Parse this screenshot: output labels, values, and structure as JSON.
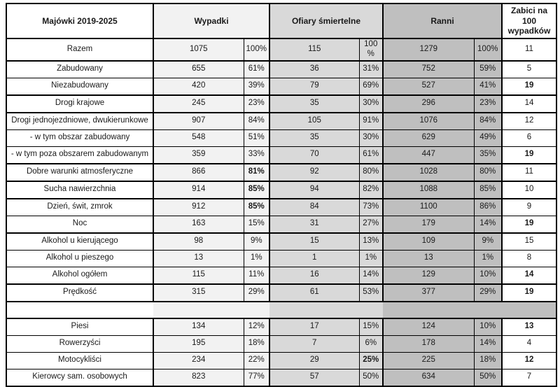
{
  "colors": {
    "wypadki_bg": "#f2f2f2",
    "ofiary_bg": "#d9d9d9",
    "ranni_bg": "#bfbfbf",
    "border": "#000000",
    "text": "#1a1a1a"
  },
  "chart_data": {
    "type": "table",
    "title": "Majówki 2019-2025",
    "header": {
      "label": "Majówki 2019-2025",
      "wypadki": "Wypadki",
      "ofiary": "Ofiary śmiertelne",
      "ranni": "Ranni",
      "zabici": "Zabici na 100 wypadków"
    },
    "columns": [
      "label",
      "wypadki_n",
      "wypadki_p",
      "ofiary_n",
      "ofiary_p",
      "ranni_n",
      "ranni_p",
      "zabici"
    ],
    "rows": [
      {
        "label": "Razem",
        "wypadki_n": "1075",
        "wypadki_p": "100%",
        "ofiary_n": "115",
        "ofiary_p": "100 %",
        "ranni_n": "1279",
        "ranni_p": "100%",
        "zabici": "11",
        "sep": true,
        "bold": []
      },
      {
        "label": "Zabudowany",
        "wypadki_n": "655",
        "wypadki_p": "61%",
        "ofiary_n": "36",
        "ofiary_p": "31%",
        "ranni_n": "752",
        "ranni_p": "59%",
        "zabici": "5",
        "sep": true,
        "bold": []
      },
      {
        "label": "Niezabudowany",
        "wypadki_n": "420",
        "wypadki_p": "39%",
        "ofiary_n": "79",
        "ofiary_p": "69%",
        "ranni_n": "527",
        "ranni_p": "41%",
        "zabici": "19",
        "sep": false,
        "bold": [
          "zabici"
        ]
      },
      {
        "label": "Drogi krajowe",
        "wypadki_n": "245",
        "wypadki_p": "23%",
        "ofiary_n": "35",
        "ofiary_p": "30%",
        "ranni_n": "296",
        "ranni_p": "23%",
        "zabici": "14",
        "sep": true,
        "bold": []
      },
      {
        "label": "Drogi jednojezdniowe, dwukierunkowe",
        "wypadki_n": "907",
        "wypadki_p": "84%",
        "ofiary_n": "105",
        "ofiary_p": "91%",
        "ranni_n": "1076",
        "ranni_p": "84%",
        "zabici": "12",
        "sep": true,
        "bold": []
      },
      {
        "label": "- w tym obszar zabudowany",
        "wypadki_n": "548",
        "wypadki_p": "51%",
        "ofiary_n": "35",
        "ofiary_p": "30%",
        "ranni_n": "629",
        "ranni_p": "49%",
        "zabici": "6",
        "sep": false,
        "bold": []
      },
      {
        "label": "- w tym poza obszarem zabudowanym",
        "wypadki_n": "359",
        "wypadki_p": "33%",
        "ofiary_n": "70",
        "ofiary_p": "61%",
        "ranni_n": "447",
        "ranni_p": "35%",
        "zabici": "19",
        "sep": false,
        "bold": [
          "zabici"
        ]
      },
      {
        "label": "Dobre warunki atmosferyczne",
        "wypadki_n": "866",
        "wypadki_p": "81%",
        "ofiary_n": "92",
        "ofiary_p": "80%",
        "ranni_n": "1028",
        "ranni_p": "80%",
        "zabici": "11",
        "sep": true,
        "bold": [
          "wypadki_p"
        ]
      },
      {
        "label": "Sucha nawierzchnia",
        "wypadki_n": "914",
        "wypadki_p": "85%",
        "ofiary_n": "94",
        "ofiary_p": "82%",
        "ranni_n": "1088",
        "ranni_p": "85%",
        "zabici": "10",
        "sep": true,
        "bold": [
          "wypadki_p"
        ]
      },
      {
        "label": "Dzień, świt, zmrok",
        "wypadki_n": "912",
        "wypadki_p": "85%",
        "ofiary_n": "84",
        "ofiary_p": "73%",
        "ranni_n": "1100",
        "ranni_p": "86%",
        "zabici": "9",
        "sep": true,
        "bold": [
          "wypadki_p"
        ]
      },
      {
        "label": "Noc",
        "wypadki_n": "163",
        "wypadki_p": "15%",
        "ofiary_n": "31",
        "ofiary_p": "27%",
        "ranni_n": "179",
        "ranni_p": "14%",
        "zabici": "19",
        "sep": false,
        "bold": [
          "zabici"
        ]
      },
      {
        "label": "Alkohol u kierującego",
        "wypadki_n": "98",
        "wypadki_p": "9%",
        "ofiary_n": "15",
        "ofiary_p": "13%",
        "ranni_n": "109",
        "ranni_p": "9%",
        "zabici": "15",
        "sep": true,
        "bold": []
      },
      {
        "label": "Alkohol u pieszego",
        "wypadki_n": "13",
        "wypadki_p": "1%",
        "ofiary_n": "1",
        "ofiary_p": "1%",
        "ranni_n": "13",
        "ranni_p": "1%",
        "zabici": "8",
        "sep": false,
        "bold": []
      },
      {
        "label": "Alkohol ogółem",
        "wypadki_n": "115",
        "wypadki_p": "11%",
        "ofiary_n": "16",
        "ofiary_p": "14%",
        "ranni_n": "129",
        "ranni_p": "10%",
        "zabici": "14",
        "sep": false,
        "bold": [
          "zabici"
        ]
      },
      {
        "label": "Prędkość",
        "wypadki_n": "315",
        "wypadki_p": "29%",
        "ofiary_n": "61",
        "ofiary_p": "53%",
        "ranni_n": "377",
        "ranni_p": "29%",
        "zabici": "19",
        "sep": true,
        "bold": [
          "zabici"
        ]
      },
      {
        "empty": true,
        "sep": true
      },
      {
        "label": "Piesi",
        "wypadki_n": "134",
        "wypadki_p": "12%",
        "ofiary_n": "17",
        "ofiary_p": "15%",
        "ranni_n": "124",
        "ranni_p": "10%",
        "zabici": "13",
        "sep": true,
        "bold": [
          "zabici"
        ]
      },
      {
        "label": "Rowerzyści",
        "wypadki_n": "195",
        "wypadki_p": "18%",
        "ofiary_n": "7",
        "ofiary_p": "6%",
        "ranni_n": "178",
        "ranni_p": "14%",
        "zabici": "4",
        "sep": false,
        "bold": []
      },
      {
        "label": "Motocykliści",
        "wypadki_n": "234",
        "wypadki_p": "22%",
        "ofiary_n": "29",
        "ofiary_p": "25%",
        "ranni_n": "225",
        "ranni_p": "18%",
        "zabici": "12",
        "sep": false,
        "bold": [
          "ofiary_p",
          "zabici"
        ]
      },
      {
        "label": "Kierowcy sam. osobowych",
        "wypadki_n": "823",
        "wypadki_p": "77%",
        "ofiary_n": "57",
        "ofiary_p": "50%",
        "ranni_n": "634",
        "ranni_p": "50%",
        "zabici": "7",
        "sep": false,
        "bold": []
      }
    ]
  }
}
